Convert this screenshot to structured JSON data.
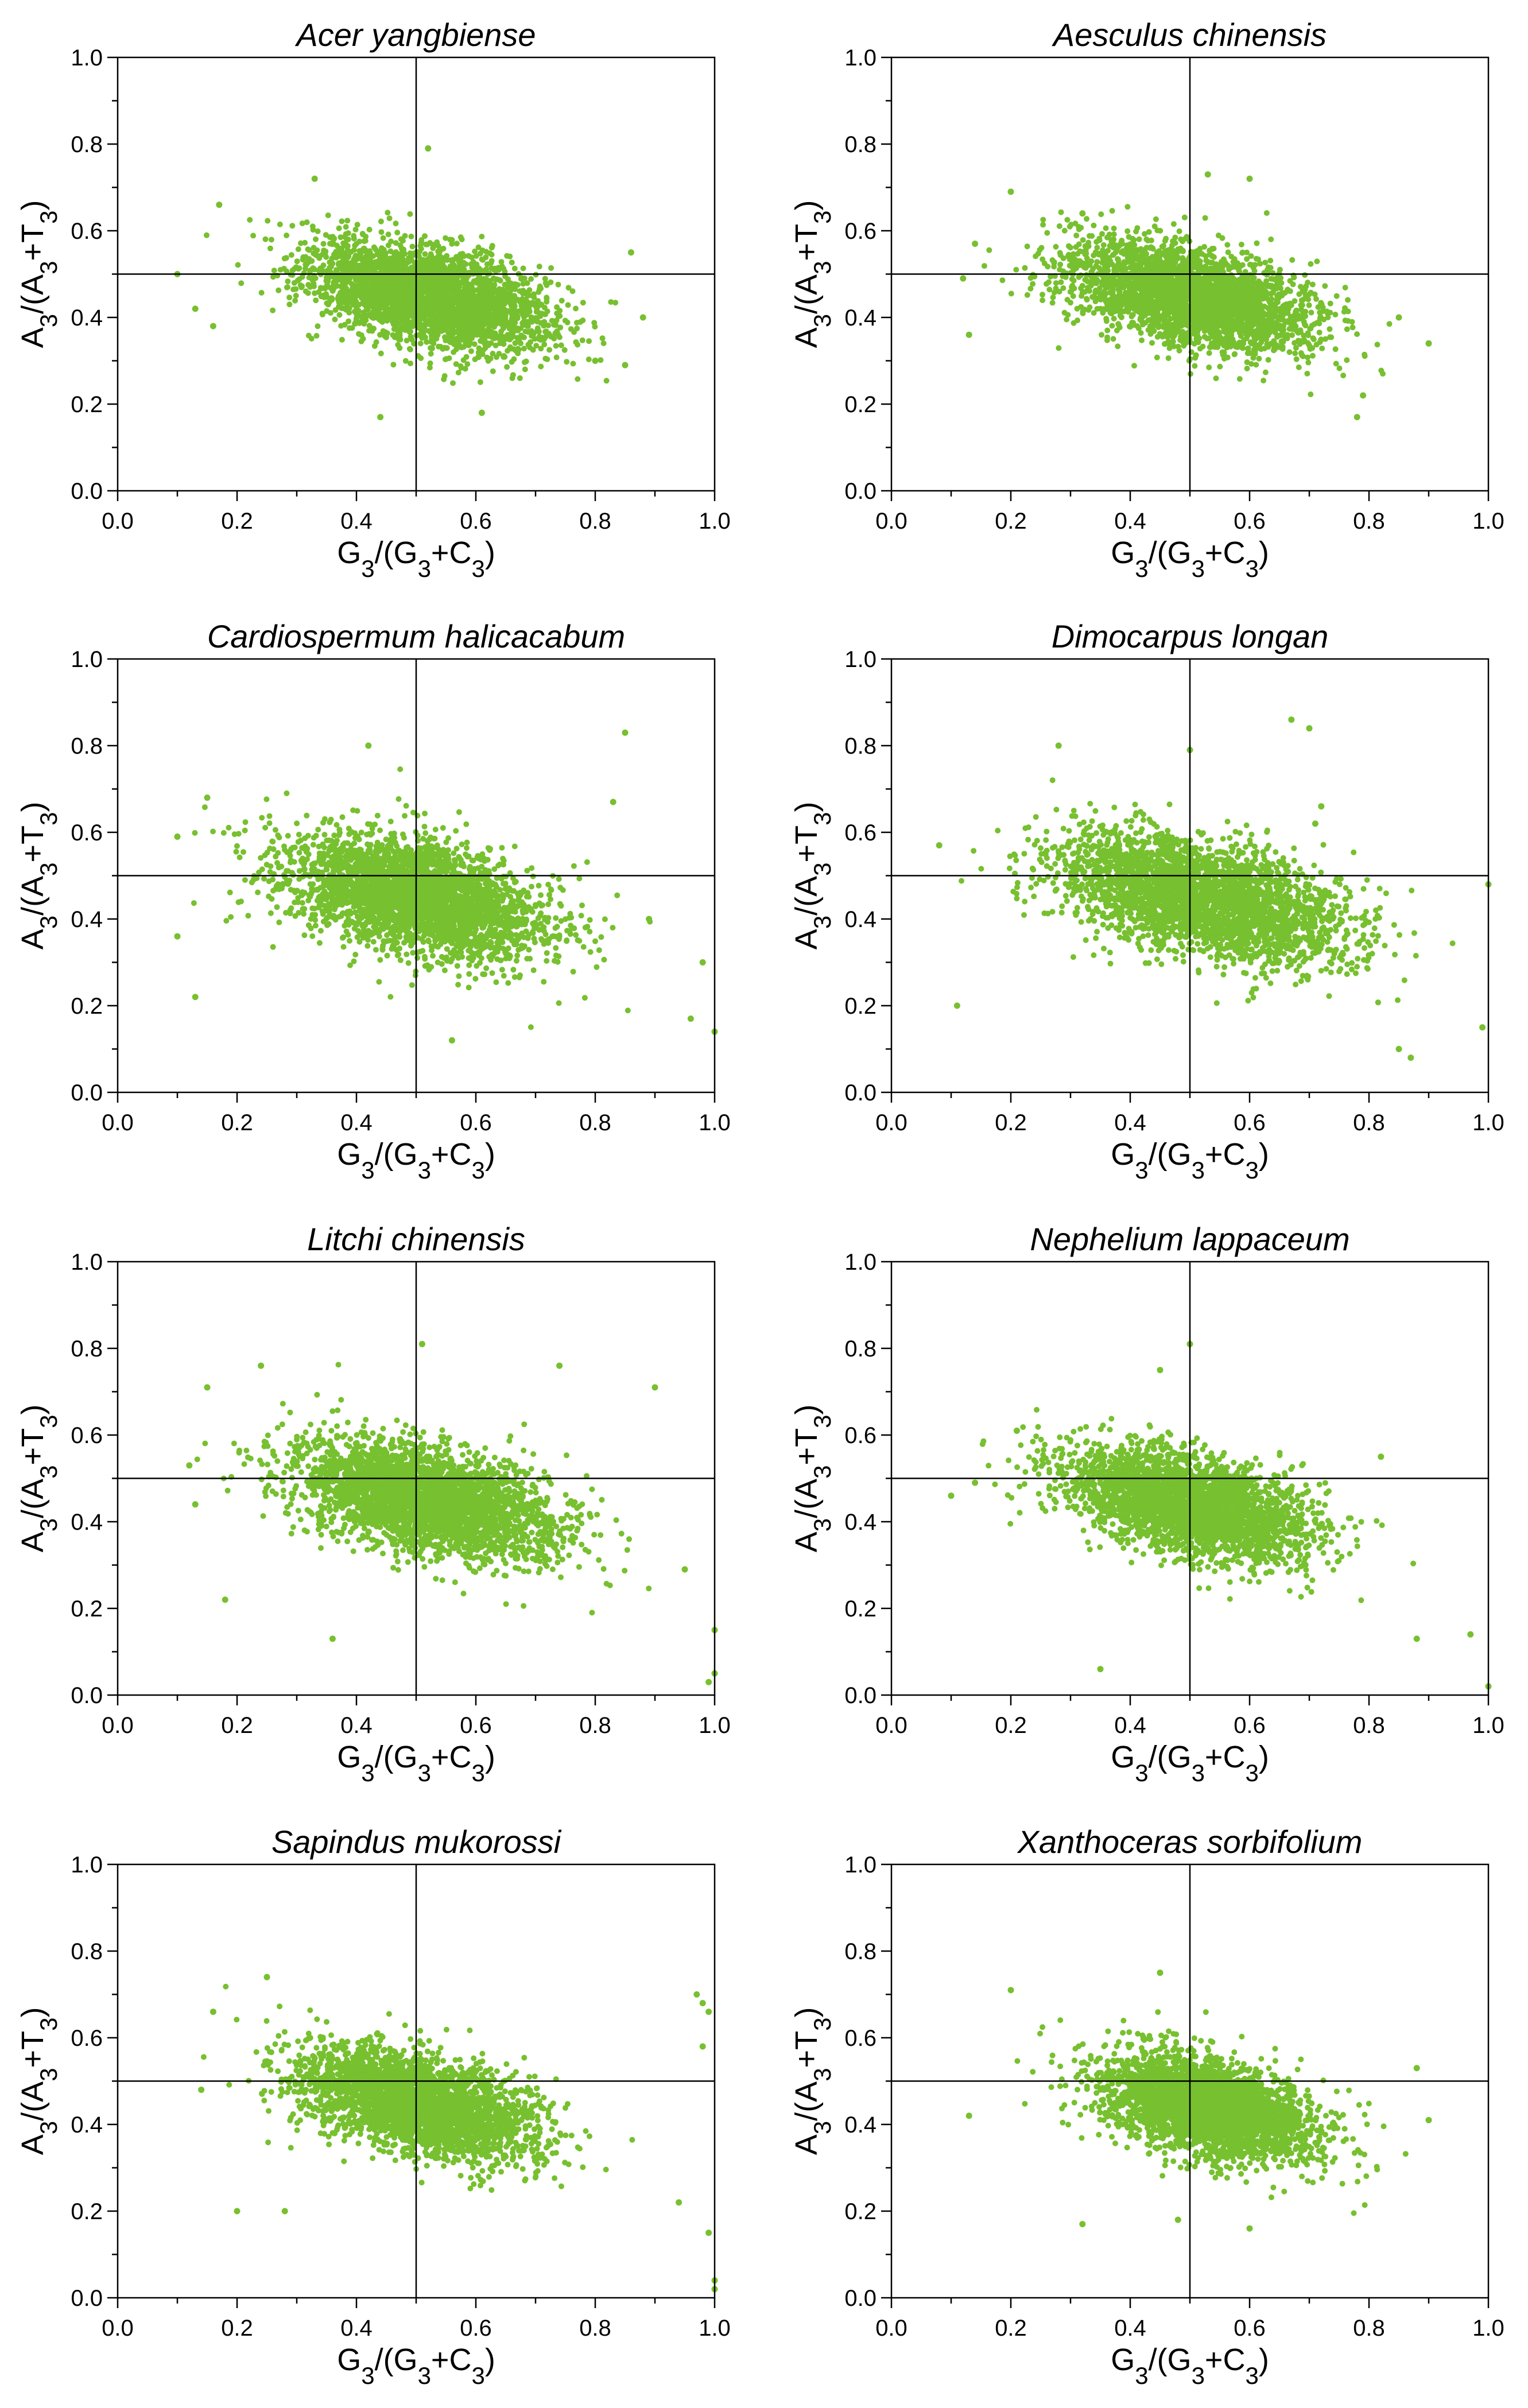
{
  "point_color": "#77c02f",
  "axis_color": "#000000",
  "chart_data": [
    {
      "type": "scatter",
      "title": "Acer yangbiense",
      "xlabel": "G3/(G3+C3)",
      "ylabel": "A3/(A3+T3)",
      "xlim": [
        0,
        1
      ],
      "ylim": [
        0,
        1
      ],
      "xticks": [
        "0.0",
        "0.2",
        "0.4",
        "0.6",
        "0.8",
        "1.0"
      ],
      "yticks": [
        "0.0",
        "0.2",
        "0.4",
        "0.6",
        "0.8",
        "1.0"
      ],
      "reference_lines": {
        "x": 0.5,
        "y": 0.5
      },
      "cloud": {
        "x_center": 0.52,
        "x_sd": 0.1,
        "y_center": 0.45,
        "y_sd": 0.055,
        "slope": -0.3,
        "x_range": [
          0.1,
          0.88
        ],
        "y_range": [
          0.16,
          0.79
        ]
      },
      "series": [
        {
          "values": [
            [
              0.52,
              0.79
            ],
            [
              0.33,
              0.72
            ],
            [
              0.17,
              0.66
            ],
            [
              0.1,
              0.5
            ],
            [
              0.13,
              0.42
            ],
            [
              0.16,
              0.38
            ],
            [
              0.86,
              0.55
            ],
            [
              0.88,
              0.4
            ],
            [
              0.85,
              0.29
            ],
            [
              0.61,
              0.18
            ],
            [
              0.44,
              0.17
            ],
            [
              0.8,
              0.3
            ]
          ]
        }
      ]
    },
    {
      "type": "scatter",
      "title": "Aesculus chinensis",
      "xlabel": "G3/(G3+C3)",
      "ylabel": "A3/(A3+T3)",
      "xlim": [
        0,
        1
      ],
      "ylim": [
        0,
        1
      ],
      "xticks": [
        "0.0",
        "0.2",
        "0.4",
        "0.6",
        "0.8",
        "1.0"
      ],
      "yticks": [
        "0.0",
        "0.2",
        "0.4",
        "0.6",
        "0.8",
        "1.0"
      ],
      "reference_lines": {
        "x": 0.5,
        "y": 0.5
      },
      "cloud": {
        "x_center": 0.5,
        "x_sd": 0.1,
        "y_center": 0.45,
        "y_sd": 0.055,
        "slope": -0.3,
        "x_range": [
          0.12,
          0.9
        ],
        "y_range": [
          0.16,
          0.74
        ]
      },
      "series": [
        {
          "values": [
            [
              0.53,
              0.73
            ],
            [
              0.2,
              0.69
            ],
            [
              0.14,
              0.57
            ],
            [
              0.12,
              0.49
            ],
            [
              0.13,
              0.36
            ],
            [
              0.9,
              0.34
            ],
            [
              0.85,
              0.4
            ],
            [
              0.78,
              0.17
            ],
            [
              0.79,
              0.22
            ],
            [
              0.6,
              0.72
            ],
            [
              0.32,
              0.64
            ]
          ]
        }
      ]
    },
    {
      "type": "scatter",
      "title": "Cardiospermum halicacabum",
      "xlabel": "G3/(G3+C3)",
      "ylabel": "A3/(A3+T3)",
      "xlim": [
        0,
        1
      ],
      "ylim": [
        0,
        1
      ],
      "xticks": [
        "0.0",
        "0.2",
        "0.4",
        "0.6",
        "0.8",
        "1.0"
      ],
      "yticks": [
        "0.0",
        "0.2",
        "0.4",
        "0.6",
        "0.8",
        "1.0"
      ],
      "reference_lines": {
        "x": 0.5,
        "y": 0.5
      },
      "cloud": {
        "x_center": 0.5,
        "x_sd": 0.11,
        "y_center": 0.45,
        "y_sd": 0.065,
        "slope": -0.3,
        "x_range": [
          0.1,
          0.92
        ],
        "y_range": [
          0.12,
          0.83
        ]
      },
      "series": [
        {
          "values": [
            [
              0.85,
              0.83
            ],
            [
              0.42,
              0.8
            ],
            [
              0.15,
              0.68
            ],
            [
              0.1,
              0.59
            ],
            [
              0.1,
              0.36
            ],
            [
              0.13,
              0.22
            ],
            [
              0.83,
              0.67
            ],
            [
              0.98,
              0.3
            ],
            [
              1.0,
              0.14
            ],
            [
              0.96,
              0.17
            ],
            [
              0.56,
              0.12
            ],
            [
              0.89,
              0.4
            ]
          ]
        }
      ]
    },
    {
      "type": "scatter",
      "title": "Dimocarpus longan",
      "xlabel": "G3/(G3+C3)",
      "ylabel": "A3/(A3+T3)",
      "xlim": [
        0,
        1
      ],
      "ylim": [
        0,
        1
      ],
      "xticks": [
        "0.0",
        "0.2",
        "0.4",
        "0.6",
        "0.8",
        "1.0"
      ],
      "yticks": [
        "0.0",
        "0.2",
        "0.4",
        "0.6",
        "0.8",
        "1.0"
      ],
      "reference_lines": {
        "x": 0.5,
        "y": 0.5
      },
      "cloud": {
        "x_center": 0.52,
        "x_sd": 0.12,
        "y_center": 0.45,
        "y_sd": 0.065,
        "slope": -0.3,
        "x_range": [
          0.08,
          0.95
        ],
        "y_range": [
          0.08,
          0.86
        ]
      },
      "series": [
        {
          "values": [
            [
              0.67,
              0.86
            ],
            [
              0.7,
              0.84
            ],
            [
              0.5,
              0.79
            ],
            [
              0.72,
              0.66
            ],
            [
              0.71,
              0.62
            ],
            [
              0.28,
              0.8
            ],
            [
              0.08,
              0.57
            ],
            [
              0.11,
              0.2
            ],
            [
              0.87,
              0.08
            ],
            [
              1.0,
              0.48
            ],
            [
              0.99,
              0.15
            ],
            [
              0.85,
              0.1
            ]
          ]
        }
      ]
    },
    {
      "type": "scatter",
      "title": "Litchi chinensis",
      "xlabel": "G3/(G3+C3)",
      "ylabel": "A3/(A3+T3)",
      "xlim": [
        0,
        1
      ],
      "ylim": [
        0,
        1
      ],
      "xticks": [
        "0.0",
        "0.2",
        "0.4",
        "0.6",
        "0.8",
        "1.0"
      ],
      "yticks": [
        "0.0",
        "0.2",
        "0.4",
        "0.6",
        "0.8",
        "1.0"
      ],
      "reference_lines": {
        "x": 0.5,
        "y": 0.5
      },
      "cloud": {
        "x_center": 0.52,
        "x_sd": 0.11,
        "y_center": 0.45,
        "y_sd": 0.06,
        "slope": -0.3,
        "x_range": [
          0.12,
          0.9
        ],
        "y_range": [
          0.12,
          0.81
        ]
      },
      "series": [
        {
          "values": [
            [
              0.51,
              0.81
            ],
            [
              0.74,
              0.76
            ],
            [
              0.24,
              0.76
            ],
            [
              0.15,
              0.71
            ],
            [
              0.12,
              0.53
            ],
            [
              0.13,
              0.44
            ],
            [
              0.18,
              0.22
            ],
            [
              0.36,
              0.13
            ],
            [
              0.9,
              0.71
            ],
            [
              0.95,
              0.29
            ],
            [
              1.0,
              0.15
            ],
            [
              1.0,
              0.05
            ],
            [
              0.99,
              0.03
            ]
          ]
        }
      ]
    },
    {
      "type": "scatter",
      "title": "Nephelium lappaceum",
      "xlabel": "G3/(G3+C3)",
      "ylabel": "A3/(A3+T3)",
      "xlim": [
        0,
        1
      ],
      "ylim": [
        0,
        1
      ],
      "xticks": [
        "0.0",
        "0.2",
        "0.4",
        "0.6",
        "0.8",
        "1.0"
      ],
      "yticks": [
        "0.0",
        "0.2",
        "0.4",
        "0.6",
        "0.8",
        "1.0"
      ],
      "reference_lines": {
        "x": 0.5,
        "y": 0.5
      },
      "cloud": {
        "x_center": 0.5,
        "x_sd": 0.1,
        "y_center": 0.44,
        "y_sd": 0.055,
        "slope": -0.3,
        "x_range": [
          0.1,
          0.9
        ],
        "y_range": [
          0.05,
          0.81
        ]
      },
      "series": [
        {
          "values": [
            [
              0.5,
              0.81
            ],
            [
              0.45,
              0.75
            ],
            [
              0.1,
              0.46
            ],
            [
              0.14,
              0.49
            ],
            [
              0.35,
              0.06
            ],
            [
              0.88,
              0.13
            ],
            [
              0.97,
              0.14
            ],
            [
              1.0,
              0.02
            ],
            [
              0.82,
              0.55
            ],
            [
              0.21,
              0.61
            ]
          ]
        }
      ]
    },
    {
      "type": "scatter",
      "title": "Sapindus mukorossi",
      "xlabel": "G3/(G3+C3)",
      "ylabel": "A3/(A3+T3)",
      "xlim": [
        0,
        1
      ],
      "ylim": [
        0,
        1
      ],
      "xticks": [
        "0.0",
        "0.2",
        "0.4",
        "0.6",
        "0.8",
        "1.0"
      ],
      "yticks": [
        "0.0",
        "0.2",
        "0.4",
        "0.6",
        "0.8",
        "1.0"
      ],
      "reference_lines": {
        "x": 0.5,
        "y": 0.5
      },
      "cloud": {
        "x_center": 0.5,
        "x_sd": 0.1,
        "y_center": 0.45,
        "y_sd": 0.055,
        "slope": -0.3,
        "x_range": [
          0.14,
          0.9
        ],
        "y_range": [
          0.18,
          0.74
        ]
      },
      "series": [
        {
          "values": [
            [
              0.97,
              0.7
            ],
            [
              0.98,
              0.68
            ],
            [
              0.99,
              0.66
            ],
            [
              0.98,
              0.58
            ],
            [
              0.99,
              0.15
            ],
            [
              1.0,
              0.04
            ],
            [
              1.0,
              0.02
            ],
            [
              0.16,
              0.66
            ],
            [
              0.14,
              0.48
            ],
            [
              0.2,
              0.2
            ],
            [
              0.28,
              0.2
            ],
            [
              0.25,
              0.74
            ],
            [
              0.94,
              0.22
            ]
          ]
        }
      ]
    },
    {
      "type": "scatter",
      "title": "Xanthoceras sorbifolium",
      "xlabel": "G3/(G3+C3)",
      "ylabel": "A3/(A3+T3)",
      "xlim": [
        0,
        1
      ],
      "ylim": [
        0,
        1
      ],
      "xticks": [
        "0.0",
        "0.2",
        "0.4",
        "0.6",
        "0.8",
        "1.0"
      ],
      "yticks": [
        "0.0",
        "0.2",
        "0.4",
        "0.6",
        "0.8",
        "1.0"
      ],
      "reference_lines": {
        "x": 0.5,
        "y": 0.5
      },
      "cloud": {
        "x_center": 0.53,
        "x_sd": 0.09,
        "y_center": 0.44,
        "y_sd": 0.055,
        "slope": -0.3,
        "x_range": [
          0.18,
          0.9
        ],
        "y_range": [
          0.16,
          0.75
        ]
      },
      "series": [
        {
          "values": [
            [
              0.45,
              0.75
            ],
            [
              0.2,
              0.71
            ],
            [
              0.13,
              0.42
            ],
            [
              0.32,
              0.17
            ],
            [
              0.88,
              0.53
            ],
            [
              0.9,
              0.41
            ],
            [
              0.6,
              0.16
            ],
            [
              0.48,
              0.18
            ]
          ]
        }
      ]
    }
  ]
}
